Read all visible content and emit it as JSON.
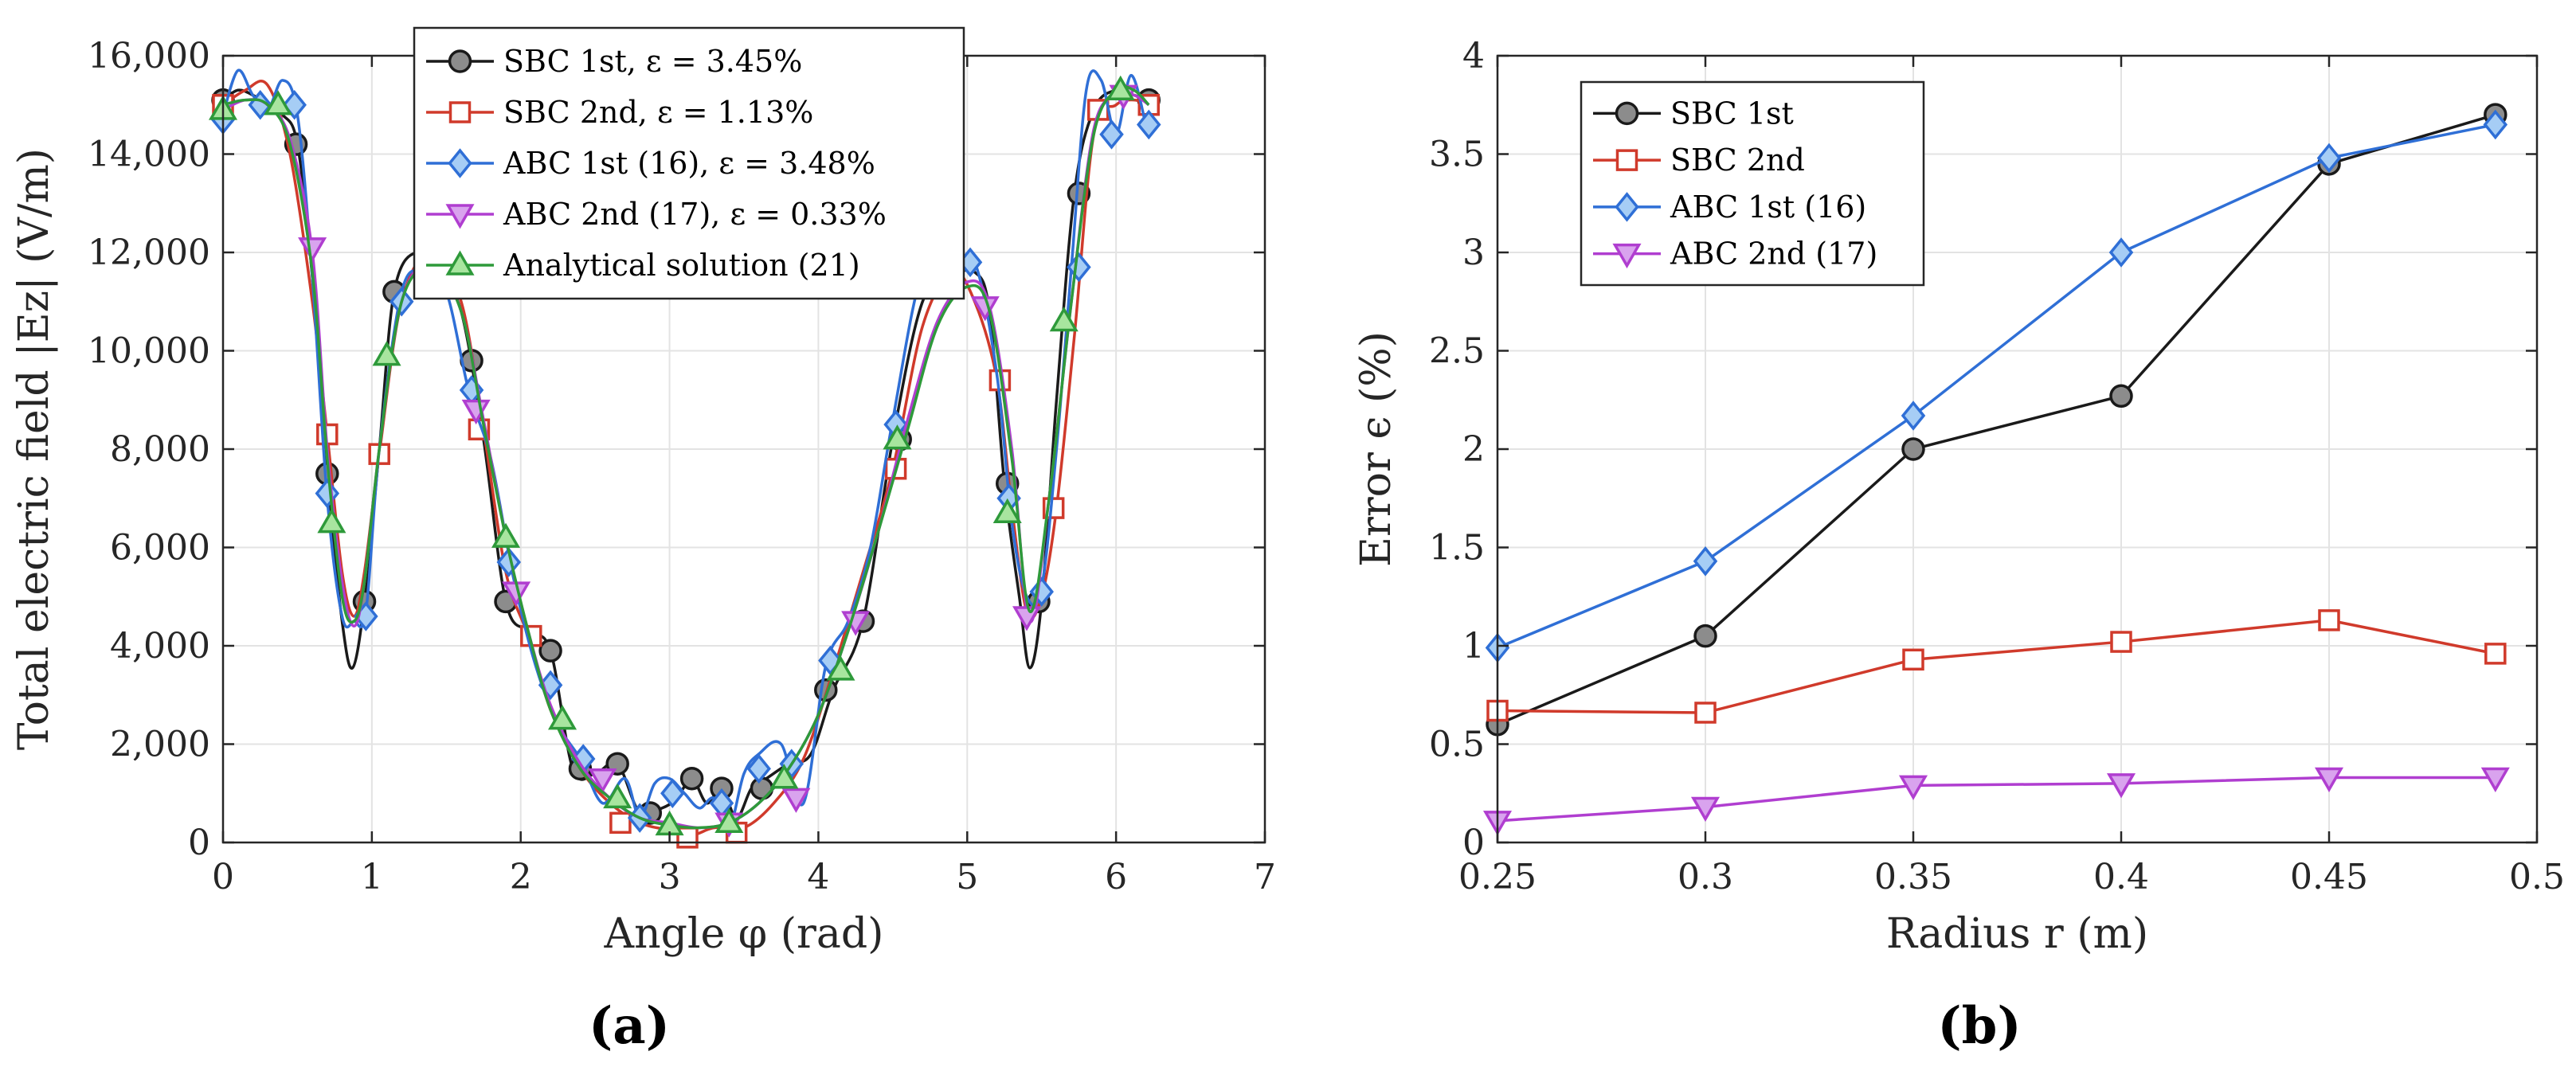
{
  "chart_data": [
    {
      "panel": "(a)",
      "type": "line",
      "title": "",
      "xlabel": "Angle φ (rad)",
      "ylabel": "Total electric field |Ez| (V/m)",
      "xlim": [
        0,
        7
      ],
      "ylim": [
        0,
        16000
      ],
      "xticks": [
        0,
        1,
        2,
        3,
        4,
        5,
        6,
        7
      ],
      "yticks": [
        0,
        2000,
        4000,
        6000,
        8000,
        10000,
        12000,
        14000,
        16000
      ],
      "xtick_labels": [
        "0",
        "1",
        "2",
        "3",
        "4",
        "5",
        "6",
        "7"
      ],
      "ytick_labels": [
        "0",
        "2,000",
        "4,000",
        "6,000",
        "8,000",
        "10,000",
        "12,000",
        "14,000",
        "16,000"
      ],
      "grid": true,
      "legend_position": "top-center",
      "series": [
        {
          "name": "SBC 1st, ε = 3.45%",
          "color": "#1a1a1a",
          "marker": "circle",
          "marker_fill": "#8c8c8c",
          "x": [
            0,
            0.1,
            0.2,
            0.3,
            0.4,
            0.5,
            0.6,
            0.7,
            0.8,
            0.87,
            0.95,
            1.05,
            1.15,
            1.3,
            1.45,
            1.6,
            1.75,
            1.9,
            2.05,
            2.2,
            2.35,
            2.5,
            2.65,
            2.8,
            2.95,
            3.05,
            3.15,
            3.25,
            3.35,
            3.45,
            3.55,
            3.65,
            3.8,
            3.95,
            4.1,
            4.3,
            4.5,
            4.7,
            4.9,
            5.05,
            5.15,
            5.25,
            5.35,
            5.42,
            5.5,
            5.6,
            5.72,
            5.85,
            6.0,
            6.12,
            6.22
          ],
          "y": [
            15100,
            15300,
            15200,
            15000,
            14800,
            14200,
            11500,
            7500,
            4500,
            3550,
            4900,
            8000,
            11200,
            12000,
            11500,
            10800,
            8200,
            4900,
            4300,
            3900,
            1500,
            1400,
            1600,
            600,
            700,
            900,
            1300,
            800,
            1100,
            500,
            1100,
            1300,
            1600,
            1800,
            3100,
            4500,
            8200,
            11000,
            11500,
            11600,
            10800,
            7300,
            5000,
            3550,
            4900,
            9000,
            13200,
            14900,
            15300,
            15200,
            15100
          ],
          "marker_x": [
            0,
            0.49,
            0.7,
            0.95,
            1.15,
            1.67,
            1.9,
            2.2,
            2.4,
            2.65,
            2.87,
            3.15,
            3.35,
            3.62,
            4.05,
            4.3,
            4.55,
            5.27,
            5.48,
            5.75,
            6.22
          ],
          "marker_y": [
            15100,
            14200,
            7500,
            4900,
            11200,
            9800,
            4900,
            3900,
            1500,
            1600,
            600,
            1300,
            1100,
            1100,
            3100,
            4500,
            8200,
            7300,
            4900,
            13200,
            15100
          ]
        },
        {
          "name": "SBC 2nd, ε = 1.13%",
          "color": "#d03a2b",
          "marker": "square",
          "marker_fill": "#ffffff",
          "x": [
            0,
            0.15,
            0.3,
            0.45,
            0.6,
            0.7,
            0.8,
            0.88,
            0.95,
            1.05,
            1.2,
            1.4,
            1.6,
            1.75,
            1.9,
            2.05,
            2.2,
            2.4,
            2.6,
            2.8,
            3.0,
            3.15,
            3.3,
            3.5,
            3.7,
            3.9,
            4.1,
            4.3,
            4.5,
            4.7,
            4.9,
            5.05,
            5.2,
            5.3,
            5.4,
            5.5,
            5.6,
            5.72,
            5.85,
            6.0,
            6.12,
            6.22
          ],
          "y": [
            15000,
            15300,
            15400,
            14000,
            11000,
            8300,
            5500,
            4600,
            5500,
            7900,
            11000,
            12000,
            11000,
            8400,
            5500,
            4200,
            2700,
            1500,
            800,
            400,
            250,
            150,
            300,
            300,
            800,
            1700,
            3500,
            5500,
            7600,
            10500,
            11600,
            11000,
            9400,
            6800,
            4700,
            5000,
            6800,
            10300,
            14400,
            15000,
            15100,
            15000
          ],
          "marker_x": [
            0,
            0.7,
            1.05,
            1.72,
            2.07,
            2.67,
            3.12,
            3.45,
            4.52,
            5.22,
            5.58,
            5.88,
            6.22
          ],
          "marker_y": [
            15000,
            8300,
            7900,
            8400,
            4200,
            400,
            100,
            200,
            7600,
            9400,
            6800,
            14900,
            15000
          ]
        },
        {
          "name": "ABC 1st (16), ε = 3.48%",
          "color": "#2f6fd6",
          "marker": "diamond",
          "marker_fill": "#a6cdf5",
          "x": [
            0,
            0.1,
            0.2,
            0.3,
            0.4,
            0.5,
            0.6,
            0.7,
            0.8,
            0.88,
            0.96,
            1.05,
            1.2,
            1.35,
            1.5,
            1.65,
            1.8,
            1.95,
            2.1,
            2.25,
            2.4,
            2.55,
            2.7,
            2.8,
            2.9,
            3.0,
            3.1,
            3.2,
            3.3,
            3.4,
            3.5,
            3.6,
            3.75,
            3.9,
            4.05,
            4.2,
            4.35,
            4.5,
            4.7,
            4.9,
            5.05,
            5.2,
            5.3,
            5.4,
            5.5,
            5.6,
            5.7,
            5.8,
            5.9,
            6.0,
            6.1,
            6.2
          ],
          "y": [
            14800,
            15700,
            15200,
            14900,
            15500,
            14800,
            11500,
            7000,
            4600,
            4500,
            4700,
            8000,
            11200,
            11600,
            11200,
            9200,
            7800,
            5400,
            3600,
            2400,
            1700,
            800,
            1300,
            500,
            1200,
            1300,
            1000,
            700,
            900,
            300,
            1400,
            1800,
            2000,
            800,
            3600,
            4500,
            6000,
            8600,
            11600,
            11600,
            11800,
            9500,
            6500,
            5000,
            5200,
            8000,
            11700,
            15300,
            15500,
            14400,
            15600,
            14600
          ],
          "marker_x": [
            0,
            0.25,
            0.48,
            0.7,
            0.96,
            1.2,
            1.67,
            1.92,
            2.2,
            2.42,
            2.8,
            3.02,
            3.35,
            3.6,
            3.82,
            4.08,
            4.52,
            5.02,
            5.28,
            5.5,
            5.75,
            5.97,
            6.22
          ],
          "marker_y": [
            14700,
            15000,
            15000,
            7100,
            4600,
            11000,
            9200,
            5700,
            3200,
            1700,
            500,
            1000,
            800,
            1500,
            1600,
            3700,
            8500,
            11800,
            7000,
            5100,
            11700,
            14400,
            14600
          ]
        },
        {
          "name": "ABC 2nd (17), ε = 0.33%",
          "color": "#b03ed0",
          "marker": "triangle-down",
          "marker_fill": "#d9a3ee",
          "x": [
            0,
            0.15,
            0.3,
            0.45,
            0.6,
            0.7,
            0.8,
            0.88,
            0.95,
            1.05,
            1.2,
            1.4,
            1.6,
            1.75,
            1.9,
            2.05,
            2.2,
            2.4,
            2.6,
            2.8,
            3.0,
            3.2,
            3.4,
            3.6,
            3.8,
            4.0,
            4.2,
            4.4,
            4.6,
            4.8,
            5.0,
            5.15,
            5.3,
            5.42,
            5.55,
            5.7,
            5.85,
            6.0,
            6.12,
            6.22
          ],
          "y": [
            14900,
            15100,
            15000,
            14300,
            12000,
            8000,
            5300,
            4400,
            5300,
            8000,
            11000,
            11800,
            10800,
            8600,
            6200,
            4300,
            2800,
            1600,
            900,
            500,
            400,
            300,
            400,
            800,
            1500,
            2600,
            4300,
            6300,
            8600,
            10600,
            11400,
            10900,
            8000,
            4500,
            7000,
            11000,
            14500,
            15200,
            15200,
            15000
          ],
          "marker_x": [
            0.6,
            1.7,
            1.97,
            2.55,
            3.4,
            3.85,
            4.25,
            5.12,
            5.4,
            6.05
          ],
          "marker_y": [
            12100,
            8800,
            5100,
            1300,
            400,
            900,
            4500,
            10900,
            4600,
            15200
          ]
        },
        {
          "name": "Analytical solution (21)",
          "color": "#2e9a3a",
          "marker": "triangle-up",
          "marker_fill": "#a8e59f",
          "x": [
            0,
            0.15,
            0.3,
            0.45,
            0.6,
            0.7,
            0.8,
            0.88,
            0.95,
            1.05,
            1.2,
            1.4,
            1.6,
            1.75,
            1.9,
            2.05,
            2.2,
            2.4,
            2.6,
            2.8,
            3.0,
            3.2,
            3.4,
            3.6,
            3.8,
            4.0,
            4.2,
            4.4,
            4.6,
            4.8,
            5.0,
            5.15,
            5.3,
            5.42,
            5.55,
            5.7,
            5.85,
            6.0,
            6.12,
            6.22
          ],
          "y": [
            15000,
            15100,
            15000,
            14200,
            11600,
            7800,
            5000,
            4500,
            5300,
            8000,
            11000,
            11700,
            10800,
            8500,
            6200,
            4300,
            2700,
            1500,
            900,
            500,
            350,
            300,
            400,
            800,
            1500,
            2600,
            4300,
            6300,
            8400,
            10500,
            11300,
            10800,
            7800,
            4700,
            7000,
            11000,
            14400,
            15300,
            15300,
            15000
          ],
          "marker_x": [
            0,
            0.37,
            0.73,
            1.1,
            1.5,
            1.9,
            2.28,
            2.65,
            3.0,
            3.4,
            3.77,
            4.15,
            4.53,
            5.27,
            5.65,
            6.03
          ],
          "marker_y": [
            14900,
            15000,
            6500,
            9900,
            11300,
            6200,
            2500,
            900,
            350,
            400,
            1300,
            3500,
            8200,
            6700,
            10600,
            15300
          ]
        }
      ]
    },
    {
      "panel": "(b)",
      "type": "line",
      "title": "",
      "xlabel": "Radius r (m)",
      "ylabel": "Error ϵ (%)",
      "xlim": [
        0.25,
        0.5
      ],
      "ylim": [
        0,
        4
      ],
      "xticks": [
        0.25,
        0.3,
        0.35,
        0.4,
        0.45,
        0.5
      ],
      "yticks": [
        0,
        0.5,
        1,
        1.5,
        2,
        2.5,
        3,
        3.5,
        4
      ],
      "xtick_labels": [
        "0.25",
        "0.3",
        "0.35",
        "0.4",
        "0.45",
        "0.5"
      ],
      "ytick_labels": [
        "0",
        "0.5",
        "1",
        "1.5",
        "2",
        "2.5",
        "3",
        "3.5",
        "4"
      ],
      "grid": true,
      "legend_position": "top-left",
      "series": [
        {
          "name": "SBC 1st",
          "color": "#1a1a1a",
          "marker": "circle",
          "marker_fill": "#8c8c8c",
          "x": [
            0.25,
            0.3,
            0.35,
            0.4,
            0.45,
            0.49
          ],
          "y": [
            0.6,
            1.05,
            2.0,
            2.27,
            3.45,
            3.7
          ]
        },
        {
          "name": "SBC 2nd",
          "color": "#d03a2b",
          "marker": "square",
          "marker_fill": "#ffffff",
          "x": [
            0.25,
            0.3,
            0.35,
            0.4,
            0.45,
            0.49
          ],
          "y": [
            0.67,
            0.66,
            0.93,
            1.02,
            1.13,
            0.96
          ]
        },
        {
          "name": "ABC 1st (16)",
          "color": "#2f6fd6",
          "marker": "diamond",
          "marker_fill": "#a6cdf5",
          "x": [
            0.25,
            0.3,
            0.35,
            0.4,
            0.45,
            0.49
          ],
          "y": [
            0.99,
            1.43,
            2.17,
            3.0,
            3.48,
            3.65
          ]
        },
        {
          "name": "ABC 2nd (17)",
          "color": "#b03ed0",
          "marker": "triangle-down",
          "marker_fill": "#d9a3ee",
          "x": [
            0.25,
            0.3,
            0.35,
            0.4,
            0.45,
            0.49
          ],
          "y": [
            0.11,
            0.18,
            0.29,
            0.3,
            0.33,
            0.33
          ]
        }
      ]
    }
  ]
}
